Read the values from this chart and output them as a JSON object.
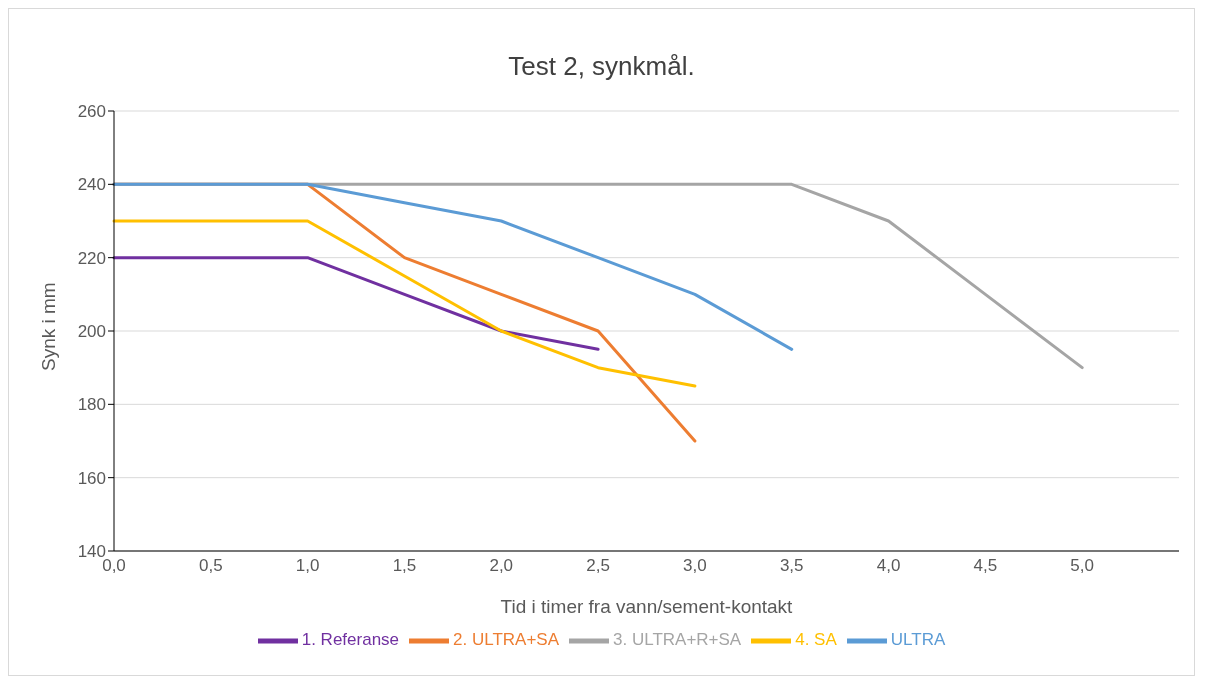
{
  "chart_data": {
    "type": "line",
    "title": "Test 2, synkmål.",
    "xlabel": "Tid i timer fra vann/sement-kontakt",
    "ylabel": "Synk i mm",
    "categories": [
      "0,0",
      "0,5",
      "1,0",
      "1,5",
      "2,0",
      "2,5",
      "3,0",
      "3,5",
      "4,0",
      "4,5",
      "5,0",
      null
    ],
    "series": [
      {
        "name": "1. Referanse",
        "color": "#7030a0",
        "values": [
          220,
          220,
          220,
          210,
          200,
          195,
          null,
          null,
          null,
          null,
          null,
          null
        ]
      },
      {
        "name": "2. ULTRA+SA",
        "color": "#ed7d31",
        "values": [
          240,
          240,
          240,
          220,
          210,
          200,
          170,
          null,
          null,
          null,
          null,
          null
        ]
      },
      {
        "name": "3. ULTRA+R+SA",
        "color": "#a5a5a5",
        "values": [
          240,
          240,
          240,
          240,
          240,
          240,
          240,
          240,
          230,
          210,
          190,
          null
        ]
      },
      {
        "name": "4. SA",
        "color": "#ffc000",
        "values": [
          230,
          230,
          230,
          215,
          200,
          190,
          185,
          null,
          null,
          null,
          null,
          null
        ]
      },
      {
        "name": "ULTRA",
        "color": "#5b9bd5",
        "values": [
          240,
          240,
          240,
          235,
          230,
          220,
          210,
          195,
          null,
          null,
          null,
          null
        ]
      }
    ],
    "ylim": [
      140,
      260
    ],
    "yticks": [
      140,
      160,
      180,
      200,
      220,
      240,
      260
    ],
    "grid": "y",
    "legend": "bottom",
    "marker": "none",
    "line_style": "solid"
  }
}
